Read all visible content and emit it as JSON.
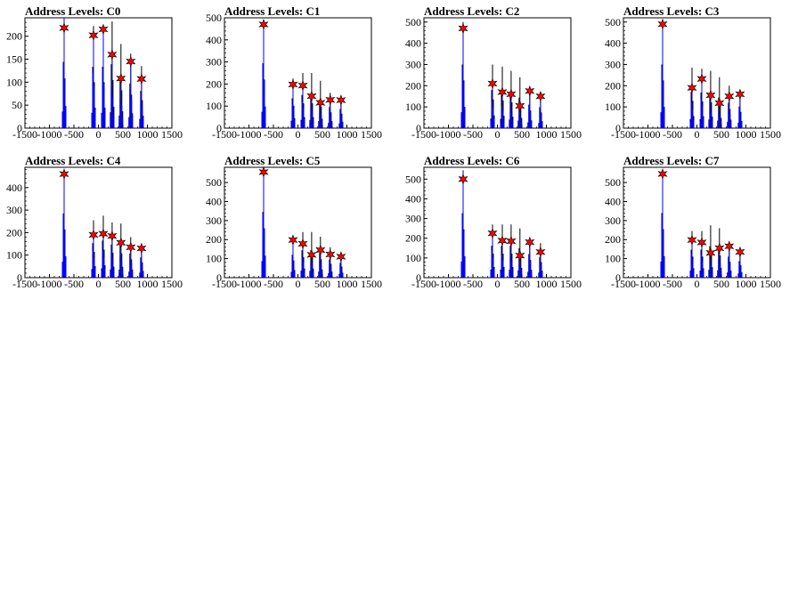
{
  "chart_data": [
    {
      "type": "histogram",
      "title": "Address Levels: C0",
      "xlim": [
        -1500,
        1500
      ],
      "ylim": [
        0,
        240
      ],
      "xticks": [
        -1500,
        -1000,
        -500,
        0,
        500,
        1000,
        1500
      ],
      "xtick_labels": [
        "-1500",
        "-1000",
        "-500",
        "0",
        "500",
        "1000",
        "1500"
      ],
      "yticks": [
        0,
        50,
        100,
        150,
        200
      ],
      "ytick_labels": [
        "0",
        "50",
        "100",
        "150",
        "200"
      ],
      "black_peaks": [
        [
          -700,
          240
        ],
        [
          -100,
          222
        ],
        [
          100,
          222
        ],
        [
          280,
          232
        ],
        [
          460,
          183
        ],
        [
          660,
          162
        ],
        [
          880,
          135
        ]
      ],
      "blue_peaks": [
        [
          -700,
          240
        ],
        [
          -100,
          200
        ],
        [
          100,
          215
        ],
        [
          280,
          150
        ],
        [
          460,
          108
        ],
        [
          660,
          140
        ],
        [
          880,
          105
        ]
      ],
      "markers": [
        [
          -700,
          218
        ],
        [
          -100,
          202
        ],
        [
          100,
          215
        ],
        [
          280,
          160
        ],
        [
          460,
          108
        ],
        [
          660,
          145
        ],
        [
          880,
          107
        ]
      ]
    },
    {
      "type": "histogram",
      "title": "Address Levels: C1",
      "xlim": [
        -1500,
        1500
      ],
      "ylim": [
        0,
        500
      ],
      "xticks": [
        -1500,
        -1000,
        -500,
        0,
        500,
        1000,
        1500
      ],
      "xtick_labels": [
        "-1500",
        "-1000",
        "-500",
        "0",
        "500",
        "1000",
        "1500"
      ],
      "yticks": [
        0,
        100,
        200,
        300,
        400,
        500
      ],
      "ytick_labels": [
        "0",
        "100",
        "200",
        "300",
        "400",
        "500"
      ],
      "black_peaks": [
        [
          -700,
          490
        ],
        [
          -100,
          225
        ],
        [
          100,
          250
        ],
        [
          280,
          250
        ],
        [
          460,
          215
        ],
        [
          660,
          160
        ],
        [
          880,
          145
        ]
      ],
      "blue_peaks": [
        [
          -700,
          485
        ],
        [
          -100,
          200
        ],
        [
          100,
          200
        ],
        [
          280,
          150
        ],
        [
          460,
          118
        ],
        [
          660,
          130
        ],
        [
          880,
          130
        ]
      ],
      "markers": [
        [
          -700,
          470
        ],
        [
          -100,
          198
        ],
        [
          100,
          193
        ],
        [
          280,
          145
        ],
        [
          460,
          115
        ],
        [
          660,
          128
        ],
        [
          880,
          127
        ]
      ]
    },
    {
      "type": "histogram",
      "title": "Address Levels: C2",
      "xlim": [
        -1500,
        1500
      ],
      "ylim": [
        0,
        520
      ],
      "xticks": [
        -1500,
        -1000,
        -500,
        0,
        500,
        1000,
        1500
      ],
      "xtick_labels": [
        "-1500",
        "-1000",
        "-500",
        "0",
        "500",
        "1000",
        "1500"
      ],
      "yticks": [
        0,
        100,
        200,
        300,
        400,
        500
      ],
      "ytick_labels": [
        "0",
        "100",
        "200",
        "300",
        "400",
        "500"
      ],
      "black_peaks": [
        [
          -700,
          500
        ],
        [
          -100,
          300
        ],
        [
          100,
          290
        ],
        [
          280,
          270
        ],
        [
          460,
          240
        ],
        [
          660,
          185
        ],
        [
          880,
          165
        ]
      ],
      "blue_peaks": [
        [
          -700,
          480
        ],
        [
          -100,
          210
        ],
        [
          100,
          175
        ],
        [
          280,
          160
        ],
        [
          460,
          110
        ],
        [
          660,
          175
        ],
        [
          880,
          155
        ]
      ],
      "markers": [
        [
          -700,
          470
        ],
        [
          -100,
          210
        ],
        [
          100,
          170
        ],
        [
          280,
          160
        ],
        [
          460,
          105
        ],
        [
          660,
          175
        ],
        [
          880,
          150
        ]
      ]
    },
    {
      "type": "histogram",
      "title": "Address Levels: C3",
      "xlim": [
        -1500,
        1500
      ],
      "ylim": [
        0,
        520
      ],
      "xticks": [
        -1500,
        -1000,
        -500,
        0,
        500,
        1000,
        1500
      ],
      "xtick_labels": [
        "-1500",
        "-1000",
        "-500",
        "0",
        "500",
        "1000",
        "1500"
      ],
      "yticks": [
        0,
        100,
        200,
        300,
        400,
        500
      ],
      "ytick_labels": [
        "0",
        "100",
        "200",
        "300",
        "400",
        "500"
      ],
      "black_peaks": [
        [
          -700,
          500
        ],
        [
          -100,
          285
        ],
        [
          100,
          280
        ],
        [
          280,
          270
        ],
        [
          460,
          240
        ],
        [
          660,
          200
        ],
        [
          880,
          170
        ]
      ],
      "blue_peaks": [
        [
          -700,
          490
        ],
        [
          -100,
          200
        ],
        [
          100,
          230
        ],
        [
          280,
          160
        ],
        [
          460,
          120
        ],
        [
          660,
          150
        ],
        [
          880,
          160
        ]
      ],
      "markers": [
        [
          -700,
          490
        ],
        [
          -100,
          190
        ],
        [
          100,
          232
        ],
        [
          280,
          155
        ],
        [
          460,
          118
        ],
        [
          660,
          150
        ],
        [
          880,
          160
        ]
      ]
    },
    {
      "type": "histogram",
      "title": "Address Levels: C4",
      "xlim": [
        -1500,
        1500
      ],
      "ylim": [
        0,
        490
      ],
      "xticks": [
        -1500,
        -1000,
        -500,
        0,
        500,
        1000,
        1500
      ],
      "xtick_labels": [
        "-1500",
        "-1000",
        "-500",
        "0",
        "500",
        "1000",
        "1500"
      ],
      "yticks": [
        0,
        100,
        200,
        300,
        400
      ],
      "ytick_labels": [
        "0",
        "100",
        "200",
        "300",
        "400"
      ],
      "black_peaks": [
        [
          -700,
          475
        ],
        [
          -100,
          255
        ],
        [
          100,
          275
        ],
        [
          280,
          245
        ],
        [
          460,
          240
        ],
        [
          660,
          180
        ],
        [
          880,
          150
        ]
      ],
      "blue_peaks": [
        [
          -700,
          470
        ],
        [
          -100,
          200
        ],
        [
          100,
          200
        ],
        [
          280,
          190
        ],
        [
          460,
          160
        ],
        [
          660,
          140
        ],
        [
          880,
          135
        ]
      ],
      "markers": [
        [
          -700,
          460
        ],
        [
          -100,
          190
        ],
        [
          100,
          195
        ],
        [
          280,
          185
        ],
        [
          460,
          155
        ],
        [
          660,
          135
        ],
        [
          880,
          130
        ]
      ]
    },
    {
      "type": "histogram",
      "title": "Address Levels: C5",
      "xlim": [
        -1500,
        1500
      ],
      "ylim": [
        0,
        580
      ],
      "xticks": [
        -1500,
        -1000,
        -500,
        0,
        500,
        1000,
        1500
      ],
      "xtick_labels": [
        "-1500",
        "-1000",
        "-500",
        "0",
        "500",
        "1000",
        "1500"
      ],
      "yticks": [
        0,
        100,
        200,
        300,
        400,
        500
      ],
      "ytick_labels": [
        "0",
        "100",
        "200",
        "300",
        "400",
        "500"
      ],
      "black_peaks": [
        [
          -700,
          575
        ],
        [
          -100,
          200
        ],
        [
          100,
          240
        ],
        [
          280,
          240
        ],
        [
          460,
          215
        ],
        [
          660,
          160
        ],
        [
          880,
          130
        ]
      ],
      "blue_peaks": [
        [
          -700,
          565
        ],
        [
          -100,
          200
        ],
        [
          100,
          180
        ],
        [
          280,
          130
        ],
        [
          460,
          140
        ],
        [
          660,
          125
        ],
        [
          880,
          115
        ]
      ],
      "markers": [
        [
          -700,
          555
        ],
        [
          -100,
          198
        ],
        [
          100,
          178
        ],
        [
          280,
          120
        ],
        [
          460,
          145
        ],
        [
          660,
          122
        ],
        [
          880,
          110
        ]
      ]
    },
    {
      "type": "histogram",
      "title": "Address Levels: C6",
      "xlim": [
        -1500,
        1500
      ],
      "ylim": [
        0,
        560
      ],
      "xticks": [
        -1500,
        -1000,
        -500,
        0,
        500,
        1000,
        1500
      ],
      "xtick_labels": [
        "-1500",
        "-1000",
        "-500",
        "0",
        "500",
        "1000",
        "1500"
      ],
      "yticks": [
        0,
        100,
        200,
        300,
        400,
        500
      ],
      "ytick_labels": [
        "0",
        "100",
        "200",
        "300",
        "400",
        "500"
      ],
      "black_peaks": [
        [
          -700,
          545
        ],
        [
          -100,
          270
        ],
        [
          100,
          270
        ],
        [
          280,
          270
        ],
        [
          460,
          250
        ],
        [
          660,
          200
        ],
        [
          880,
          175
        ]
      ],
      "blue_peaks": [
        [
          -700,
          535
        ],
        [
          -100,
          230
        ],
        [
          100,
          195
        ],
        [
          280,
          185
        ],
        [
          460,
          115
        ],
        [
          660,
          180
        ],
        [
          880,
          135
        ]
      ],
      "markers": [
        [
          -700,
          500
        ],
        [
          -100,
          225
        ],
        [
          100,
          188
        ],
        [
          280,
          185
        ],
        [
          460,
          112
        ],
        [
          660,
          180
        ],
        [
          880,
          130
        ]
      ]
    },
    {
      "type": "histogram",
      "title": "Address Levels: C7",
      "xlim": [
        -1500,
        1500
      ],
      "ylim": [
        0,
        580
      ],
      "xticks": [
        -1500,
        -1000,
        -500,
        0,
        500,
        1000,
        1500
      ],
      "xtick_labels": [
        "-1500",
        "-1000",
        "-500",
        "0",
        "500",
        "1000",
        "1500"
      ],
      "yticks": [
        0,
        100,
        200,
        300,
        400,
        500
      ],
      "ytick_labels": [
        "0",
        "100",
        "200",
        "300",
        "400",
        "500"
      ],
      "black_peaks": [
        [
          -700,
          565
        ],
        [
          -100,
          245
        ],
        [
          100,
          245
        ],
        [
          280,
          275
        ],
        [
          460,
          260
        ],
        [
          660,
          185
        ],
        [
          880,
          145
        ]
      ],
      "blue_peaks": [
        [
          -700,
          555
        ],
        [
          -100,
          210
        ],
        [
          100,
          200
        ],
        [
          280,
          140
        ],
        [
          460,
          160
        ],
        [
          660,
          170
        ],
        [
          880,
          140
        ]
      ],
      "markers": [
        [
          -700,
          545
        ],
        [
          -100,
          198
        ],
        [
          100,
          185
        ],
        [
          280,
          130
        ],
        [
          460,
          155
        ],
        [
          660,
          165
        ],
        [
          880,
          135
        ]
      ]
    }
  ],
  "colors": {
    "axis": "#000000",
    "black_histogram": "#000000",
    "blue_histogram": "#0000ff",
    "marker_fill": "#ff0000",
    "marker_stroke": "#000000"
  }
}
